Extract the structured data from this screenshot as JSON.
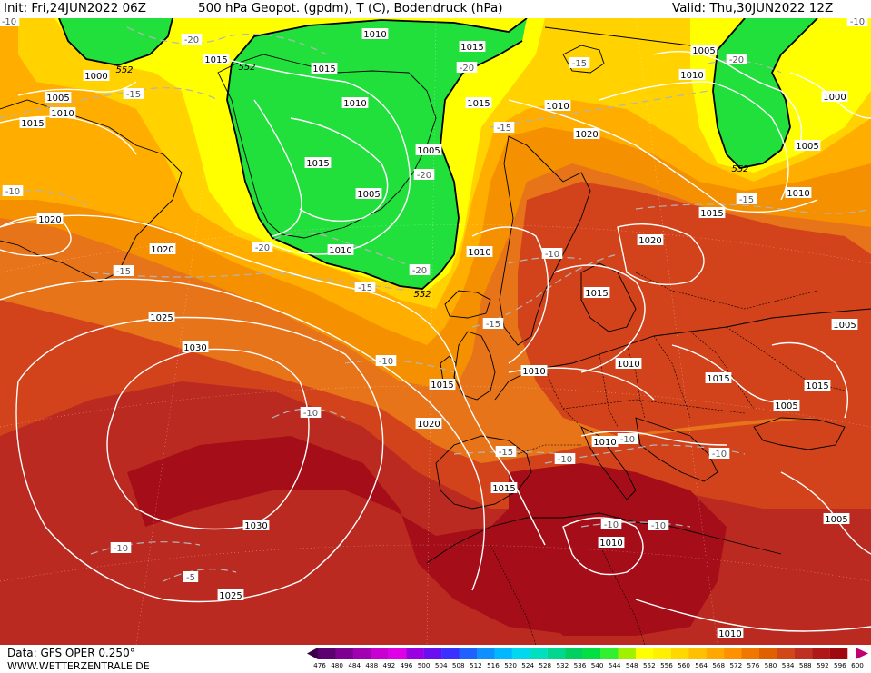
{
  "header": {
    "init": "Init: Fri,24JUN2022 06Z",
    "title": "500 hPa Geopot. (gpdm), T (C), Bodendruck (hPa)",
    "valid": "Valid: Thu,30JUN2022 12Z"
  },
  "footer": {
    "data_source": "Data: GFS OPER 0.250°",
    "site": "WWW.WETTERZENTRALE.DE"
  },
  "legend": {
    "ticks": [
      "476",
      "480",
      "484",
      "488",
      "492",
      "496",
      "500",
      "504",
      "508",
      "512",
      "516",
      "520",
      "524",
      "528",
      "532",
      "536",
      "540",
      "544",
      "548",
      "552",
      "556",
      "560",
      "564",
      "568",
      "572",
      "576",
      "580",
      "584",
      "588",
      "592",
      "596",
      "600"
    ],
    "colors": [
      "#3a0048",
      "#5c0070",
      "#7e0090",
      "#a000b0",
      "#c800d0",
      "#e000e8",
      "#9a00e0",
      "#6a10f0",
      "#3a30ff",
      "#2060ff",
      "#1090ff",
      "#00b8ff",
      "#00d8f0",
      "#00e0c0",
      "#00d890",
      "#00d060",
      "#00e040",
      "#30f030",
      "#a0f000",
      "#ffff00",
      "#fff000",
      "#ffd800",
      "#ffc000",
      "#ffa800",
      "#ff9000",
      "#f07800",
      "#e06000",
      "#d04818",
      "#c03020",
      "#b01818",
      "#a00810",
      "#c00070"
    ]
  },
  "map": {
    "colors": {
      "green": "#22e03c",
      "yellow": "#ffff00",
      "gold": "#ffd200",
      "amber": "#ffae00",
      "orange": "#f58a00",
      "darkorange": "#e56a10",
      "red": "#d2431c",
      "crimson": "#bb2a20",
      "darkred": "#a50d18",
      "coast": "#000000",
      "isobar": "#ffffff",
      "isotherm": "#b4b4b4"
    },
    "pressure_labels": [
      "1010",
      "1015",
      "1015",
      "1015",
      "1010",
      "1005",
      "1000",
      "1010",
      "1015",
      "1010",
      "1005",
      "1015",
      "1005",
      "1010",
      "1015",
      "1020",
      "1005",
      "1000",
      "1005",
      "1010",
      "1015",
      "1020",
      "1020",
      "1010",
      "1015",
      "1020",
      "1010",
      "1015",
      "1025",
      "1030",
      "1010",
      "1015",
      "1005",
      "1015",
      "1010",
      "1005",
      "1020",
      "1010",
      "1015",
      "1005",
      "1010",
      "1030",
      "1025",
      "1010"
    ],
    "temp_labels": [
      "-20",
      "-20",
      "-15",
      "-15",
      "-20",
      "-20",
      "-15",
      "-20",
      "-20",
      "-15",
      "-10",
      "-15",
      "-10",
      "-15",
      "-15",
      "-10",
      "-10",
      "-15",
      "-10",
      "-10",
      "-10",
      "-10",
      "-10",
      "-10",
      "-10",
      "-5",
      "-10"
    ],
    "geopot_labels": [
      "552",
      "552",
      "552",
      "552"
    ]
  }
}
